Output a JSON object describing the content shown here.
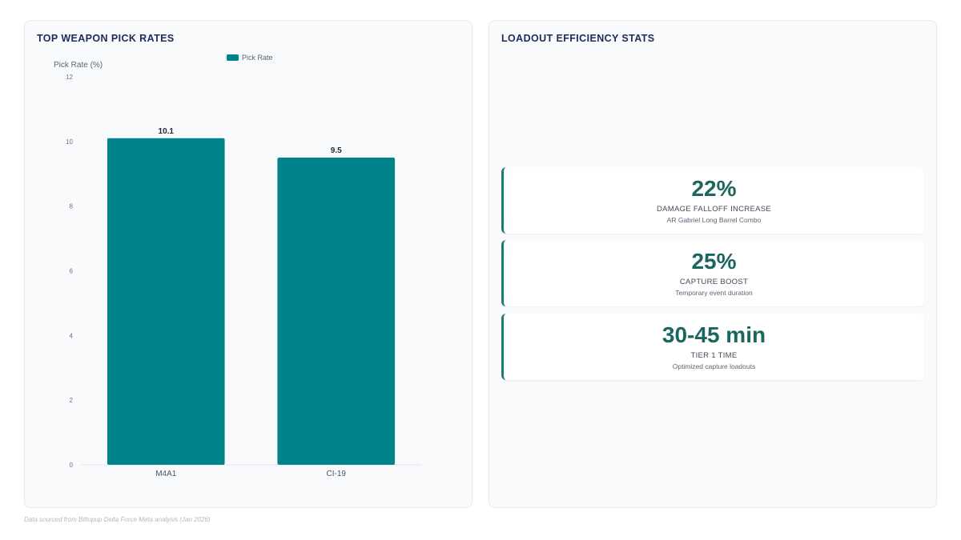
{
  "chart_panel": {
    "title": "TOP WEAPON PICK RATES"
  },
  "chart_data": {
    "type": "bar",
    "categories": [
      "M4A1",
      "CI-19"
    ],
    "series": [
      {
        "name": "Pick Rate",
        "values": [
          10.1,
          9.5
        ],
        "color": "#00838a"
      }
    ],
    "data_labels": [
      "10.1",
      "9.5"
    ],
    "ylabel": "Pick Rate (%)",
    "xlabel": "",
    "ylim": [
      0,
      12
    ],
    "yticks": [
      0,
      2,
      4,
      6,
      8,
      10,
      12
    ],
    "legend_position": "top-center",
    "grid": false
  },
  "stats_panel": {
    "title": "LOADOUT EFFICIENCY STATS",
    "accent_color": "#1f7a72",
    "cards": [
      {
        "value": "22%",
        "label": "DAMAGE FALLOFF INCREASE",
        "sub": "AR Gabriel Long Barrel Combo"
      },
      {
        "value": "25%",
        "label": "CAPTURE BOOST",
        "sub": "Temporary event duration"
      },
      {
        "value": "30-45 min",
        "label": "TIER 1 TIME",
        "sub": "Optimized capture loadouts"
      }
    ]
  },
  "footnote": "Data sourced from Bittopup Delta Force Meta analysis (Jan 2026)"
}
